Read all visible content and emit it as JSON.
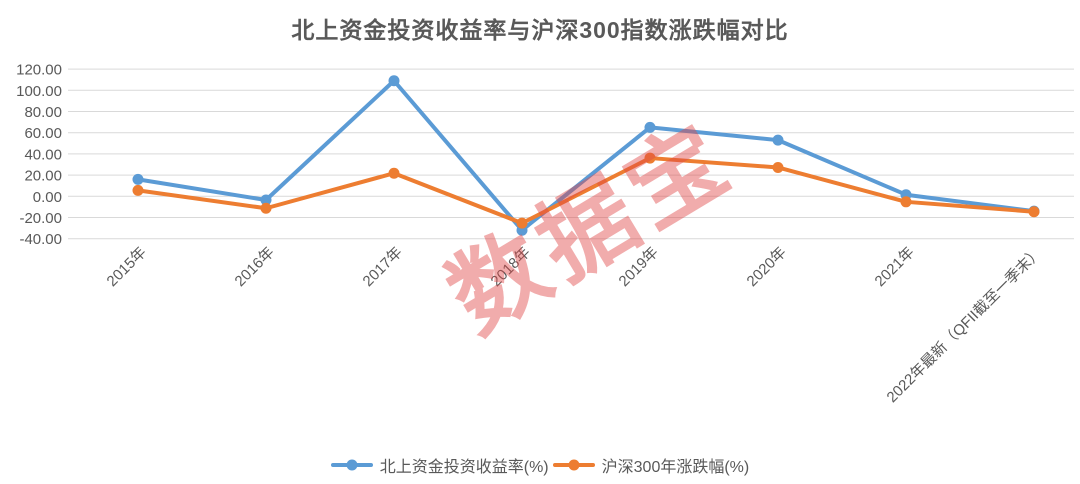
{
  "title": "北上资金投资收益率与沪深300指数涨跌幅对比",
  "watermark": {
    "text": "数据宝",
    "color": "rgba(223, 70, 70, 0.45)"
  },
  "chart_data": {
    "type": "line",
    "title": "北上资金投资收益率与沪深300指数涨跌幅对比",
    "categories": [
      "2015年",
      "2016年",
      "2017年",
      "2018年",
      "2019年",
      "2020年",
      "2021年",
      "2022年最新（QFII截至一季末）"
    ],
    "series": [
      {
        "name": "北上资金投资收益率(%)",
        "color": "#5B9BD5",
        "values": [
          16.0,
          -3.5,
          109.0,
          -32.0,
          65.0,
          53.0,
          1.5,
          -14.0
        ]
      },
      {
        "name": "沪深300年涨跌幅(%)",
        "color": "#ED7D31",
        "values": [
          5.58,
          -11.28,
          21.78,
          -25.31,
          36.07,
          27.21,
          -5.2,
          -14.53
        ]
      }
    ],
    "y_axis": {
      "min": -40,
      "max": 120,
      "step": 20,
      "tick_labels": [
        "120.00",
        "100.00",
        "80.00",
        "60.00",
        "40.00",
        "20.00",
        "0.00",
        "-20.00",
        "-40.00"
      ]
    },
    "grid": true,
    "legend_position": "bottom",
    "colors": {
      "grid": "#D9D9D9",
      "axis_text": "#595959",
      "title_text": "#595959"
    }
  }
}
